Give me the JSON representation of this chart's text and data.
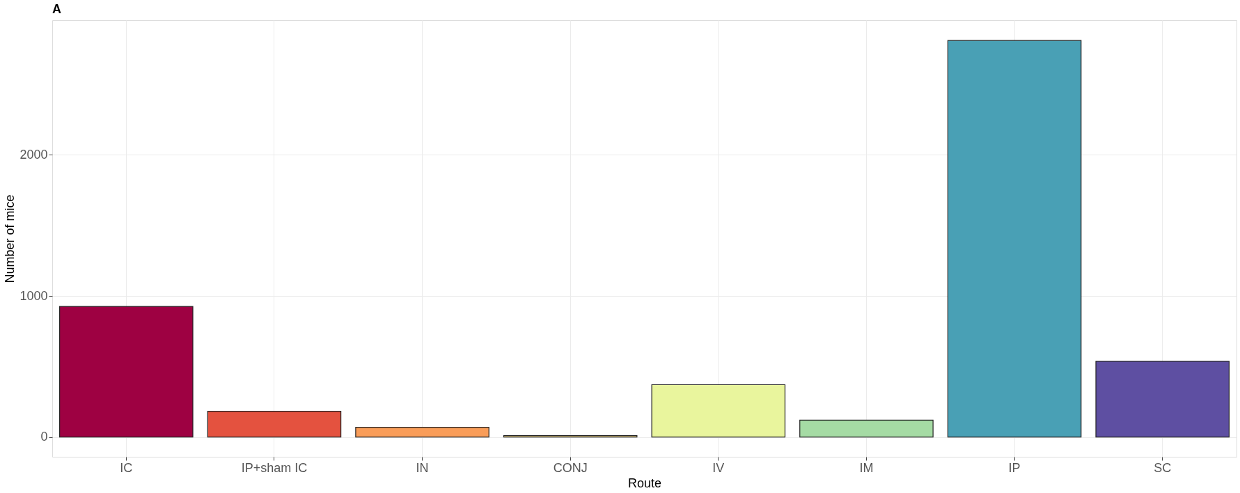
{
  "chart_data": {
    "type": "bar",
    "title": "A",
    "xlabel": "Route",
    "ylabel": "Number of mice",
    "categories": [
      "IC",
      "IP+sham IC",
      "IN",
      "CONJ",
      "IV",
      "IM",
      "IP",
      "SC"
    ],
    "values": [
      926,
      183,
      69,
      10,
      371,
      120,
      2811,
      537
    ],
    "colors": [
      "#9e0142",
      "#e4523f",
      "#f99d59",
      "#fee08b",
      "#e9f59d",
      "#a5dba4",
      "#49a0b5",
      "#5e4fa2"
    ],
    "ylim": [
      -140,
      2955
    ],
    "yticks": [
      0,
      1000,
      2000
    ],
    "grid": true
  }
}
